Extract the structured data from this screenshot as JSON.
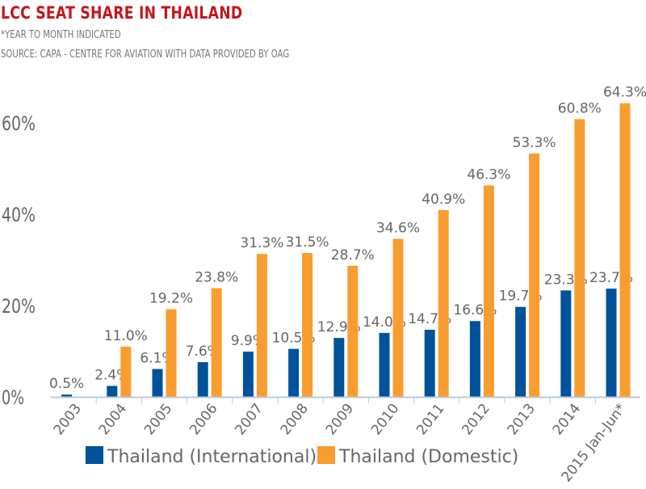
{
  "header": {
    "title": "LCC SEAT SHARE IN THAILAND",
    "note": "*YEAR TO MONTH INDICATED",
    "source": "SOURCE: CAPA - CENTRE FOR AVIATION WITH DATA PROVIDED BY OAG"
  },
  "chart_data": {
    "type": "bar",
    "title": "LCC SEAT SHARE IN THAILAND",
    "categories": [
      "2003",
      "2004",
      "2005",
      "2006",
      "2007",
      "2008",
      "2009",
      "2010",
      "2011",
      "2012",
      "2013",
      "2014",
      "2015 Jan-Jun*"
    ],
    "series": [
      {
        "name": "Thailand (International)",
        "color": "#00529b",
        "values": [
          0.5,
          2.4,
          6.1,
          7.6,
          9.9,
          10.5,
          12.9,
          14.0,
          14.7,
          16.6,
          19.7,
          23.3,
          23.7
        ],
        "labels": [
          "0.5%",
          "2.4%",
          "6.1%",
          "7.6%",
          "9.9%",
          "10.5%",
          "12.9%",
          "14.0%",
          "14.7%",
          "16.6%",
          "19.7%",
          "23.3%",
          "23.7%"
        ]
      },
      {
        "name": "Thailand (Domestic)",
        "color": "#f99d31",
        "values": [
          null,
          11.0,
          19.2,
          23.8,
          31.3,
          31.5,
          28.7,
          34.6,
          40.9,
          46.3,
          53.3,
          60.8,
          64.3
        ],
        "labels": [
          "",
          "11.0%",
          "19.2%",
          "23.8%",
          "31.3%",
          "31.5%",
          "28.7%",
          "34.6%",
          "40.9%",
          "46.3%",
          "53.3%",
          "60.8%",
          "64.3%"
        ]
      }
    ],
    "yticks": [
      "0%",
      "20%",
      "40%",
      "60%"
    ],
    "ytick_values": [
      0,
      20,
      40,
      60
    ],
    "ylim": [
      0,
      70
    ],
    "grid": false,
    "legend": "bottom"
  }
}
